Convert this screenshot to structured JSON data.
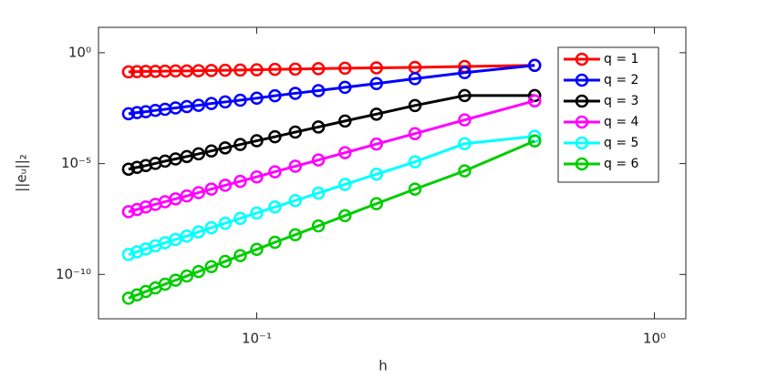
{
  "chart_data": {
    "type": "line",
    "xlabel": "h",
    "ylabel": "||eᵤ||₂",
    "xscale": "log",
    "yscale": "log",
    "xlim": [
      0.04,
      1.2
    ],
    "ylim": [
      1e-12,
      14
    ],
    "xticks": [
      {
        "value": 0.1,
        "label": "10⁻¹"
      },
      {
        "value": 1,
        "label": "10⁰"
      }
    ],
    "yticks": [
      {
        "value": 1e-10,
        "label": "10⁻¹⁰"
      },
      {
        "value": 1e-05,
        "label": "10⁻⁵"
      },
      {
        "value": 1,
        "label": "10⁰"
      }
    ],
    "legend": "northeast",
    "x": [
      0.5,
      0.3333,
      0.25,
      0.2,
      0.1667,
      0.1429,
      0.125,
      0.1111,
      0.1,
      0.0909,
      0.0833,
      0.0769,
      0.0714,
      0.0667,
      0.0625,
      0.0588,
      0.0556,
      0.0526,
      0.05,
      0.0476
    ],
    "series": [
      {
        "name": "q = 1",
        "color": "#ff0000",
        "values": [
          0.269,
          0.24,
          0.219,
          0.209,
          0.2,
          0.191,
          0.182,
          0.178,
          0.17,
          0.166,
          0.162,
          0.158,
          0.155,
          0.151,
          0.151,
          0.148,
          0.145,
          0.145,
          0.141,
          0.138
        ]
      },
      {
        "name": "q = 2",
        "color": "#0000ff",
        "values": [
          0.269,
          0.126,
          0.0676,
          0.0407,
          0.0275,
          0.0195,
          0.0148,
          0.0115,
          0.00891,
          0.00724,
          0.00603,
          0.00513,
          0.00427,
          0.00372,
          0.00324,
          0.00282,
          0.00251,
          0.00219,
          0.002,
          0.00178
        ]
      },
      {
        "name": "q = 3",
        "color": "#000000",
        "values": [
          0.0117,
          0.0117,
          0.00417,
          0.0017,
          0.000832,
          0.000447,
          0.000263,
          0.000162,
          0.000107,
          7.24e-05,
          5.13e-05,
          3.72e-05,
          2.75e-05,
          2.09e-05,
          1.62e-05,
          1.29e-05,
          1.02e-05,
          8.13e-06,
          6.76e-06,
          5.62e-06
        ]
      },
      {
        "name": "q = 4",
        "color": "#ff00ff",
        "values": [
          0.00676,
          0.000933,
          0.000224,
          7.59e-05,
          3.09e-05,
          1.45e-05,
          7.59e-06,
          4.27e-06,
          2.51e-06,
          1.58e-06,
          1.05e-06,
          7.08e-07,
          4.9e-07,
          3.47e-07,
          2.57e-07,
          1.91e-07,
          1.45e-07,
          1.1e-07,
          8.51e-08,
          6.76e-08
        ]
      },
      {
        "name": "q = 5",
        "color": "#00ffff",
        "values": [
          0.00017,
          7.94e-05,
          1.2e-05,
          3.31e-06,
          1.15e-06,
          4.68e-07,
          2.14e-07,
          1.1e-07,
          5.89e-08,
          3.39e-08,
          2.04e-08,
          1.29e-08,
          8.32e-09,
          5.37e-09,
          3.8e-09,
          2.69e-09,
          1.95e-09,
          1.41e-09,
          1.05e-09,
          7.94e-10
        ]
      },
      {
        "name": "q = 6",
        "color": "#00cc00",
        "values": [
          0.000105,
          4.68e-06,
          7.08e-07,
          1.55e-07,
          4.47e-08,
          1.55e-08,
          6.17e-09,
          2.82e-09,
          1.35e-09,
          7.08e-10,
          3.89e-10,
          2.24e-10,
          1.35e-10,
          8.51e-11,
          5.5e-11,
          3.63e-11,
          2.45e-11,
          1.7e-11,
          1.2e-11,
          8.51e-12
        ]
      }
    ]
  }
}
